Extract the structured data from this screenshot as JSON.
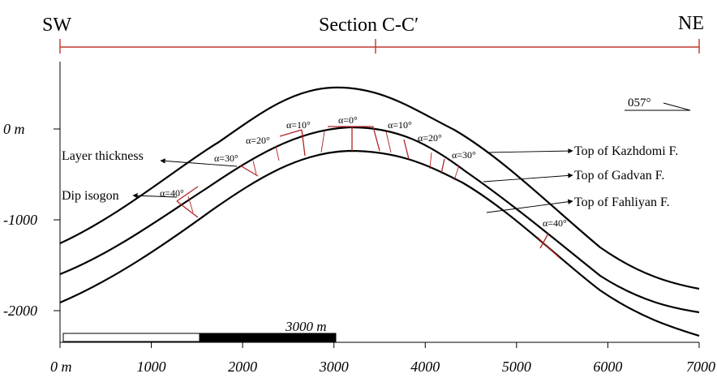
{
  "header": {
    "left": "SW",
    "title": "Section C-C′",
    "right": "NE"
  },
  "orientation": {
    "label": "057°"
  },
  "y_axis": {
    "ticks": [
      {
        "label": "0 m",
        "italic": true
      },
      {
        "label": "-1000",
        "italic": true
      },
      {
        "label": "-2000",
        "italic": true
      }
    ]
  },
  "x_axis": {
    "ticks": [
      "0 m",
      "1000",
      "2000",
      "3000",
      "4000",
      "5000",
      "6000",
      "7000"
    ]
  },
  "scale_bar": {
    "label": "3000 m"
  },
  "annotations": {
    "layer_thickness": "Layer thickness",
    "dip_isogon": "Dip isogon",
    "top_kazhdomi": "Top of Kazhdomi F.",
    "top_gadvan": "Top of Gadvan F.",
    "top_fahliyan": "Top of Fahliyan F."
  },
  "dip_labels": [
    "α=40°",
    "α=30°",
    "α=20°",
    "α=10°",
    "α=0°",
    "α=10°",
    "α=20°",
    "α=30°",
    "α=40°"
  ],
  "colors": {
    "line": "#000000",
    "isogon": "#b22222",
    "header_line": "#c0392b"
  }
}
